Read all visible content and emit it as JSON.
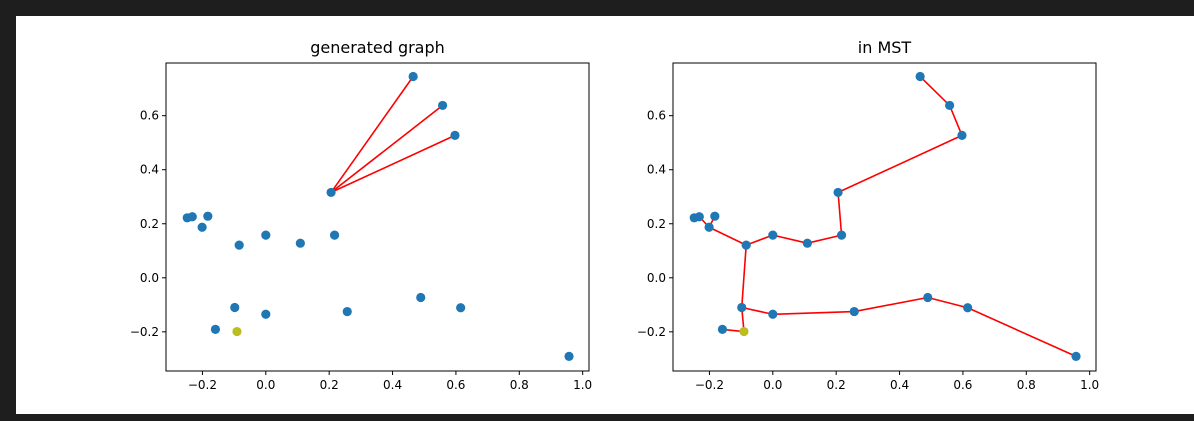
{
  "chart_data": [
    {
      "type": "scatter",
      "title": "generated graph",
      "xlabel": "",
      "ylabel": "",
      "xlim": [
        -0.315,
        1.02
      ],
      "ylim": [
        -0.345,
        0.795
      ],
      "xticks": [
        -0.2,
        0.0,
        0.2,
        0.4,
        0.6,
        0.8,
        1.0
      ],
      "xtick_labels": [
        "−0.2",
        "0.0",
        "0.2",
        "0.4",
        "0.6",
        "0.8",
        "1.0"
      ],
      "yticks": [
        -0.2,
        0.0,
        0.2,
        0.4,
        0.6
      ],
      "ytick_labels": [
        "−0.2",
        "0.0",
        "0.2",
        "0.4",
        "0.6"
      ],
      "grid": false,
      "points": [
        [
          0.465,
          0.745
        ],
        [
          0.558,
          0.638
        ],
        [
          0.597,
          0.527
        ],
        [
          0.206,
          0.316
        ],
        [
          -0.248,
          0.222
        ],
        [
          -0.232,
          0.226
        ],
        [
          -0.183,
          0.228
        ],
        [
          -0.201,
          0.187
        ],
        [
          -0.084,
          0.121
        ],
        [
          0.0,
          0.158
        ],
        [
          0.109,
          0.128
        ],
        [
          0.217,
          0.158
        ],
        [
          -0.098,
          -0.11
        ],
        [
          0.489,
          -0.073
        ],
        [
          0.615,
          -0.111
        ],
        [
          0.257,
          -0.125
        ],
        [
          0.0,
          -0.135
        ],
        [
          -0.159,
          -0.191
        ],
        [
          0.957,
          -0.291
        ]
      ],
      "highlight_point": [
        -0.091,
        -0.199
      ],
      "edges": [
        [
          [
            0.206,
            0.316
          ],
          [
            0.465,
            0.745
          ]
        ],
        [
          [
            0.206,
            0.316
          ],
          [
            0.558,
            0.638
          ]
        ],
        [
          [
            0.206,
            0.316
          ],
          [
            0.597,
            0.527
          ]
        ]
      ],
      "colors": {
        "points": "#1f77b4",
        "highlight": "#bcbd22",
        "edges": "#ff0000"
      }
    },
    {
      "type": "scatter",
      "title": "in MST",
      "xlabel": "",
      "ylabel": "",
      "xlim": [
        -0.315,
        1.02
      ],
      "ylim": [
        -0.345,
        0.795
      ],
      "xticks": [
        -0.2,
        0.0,
        0.2,
        0.4,
        0.6,
        0.8,
        1.0
      ],
      "xtick_labels": [
        "−0.2",
        "0.0",
        "0.2",
        "0.4",
        "0.6",
        "0.8",
        "1.0"
      ],
      "yticks": [
        -0.2,
        0.0,
        0.2,
        0.4,
        0.6
      ],
      "ytick_labels": [
        "−0.2",
        "0.0",
        "0.2",
        "0.4",
        "0.6"
      ],
      "grid": false,
      "points": [
        [
          0.465,
          0.745
        ],
        [
          0.558,
          0.638
        ],
        [
          0.597,
          0.527
        ],
        [
          0.206,
          0.316
        ],
        [
          -0.248,
          0.222
        ],
        [
          -0.232,
          0.226
        ],
        [
          -0.183,
          0.228
        ],
        [
          -0.201,
          0.187
        ],
        [
          -0.084,
          0.121
        ],
        [
          0.0,
          0.158
        ],
        [
          0.109,
          0.128
        ],
        [
          0.217,
          0.158
        ],
        [
          -0.098,
          -0.11
        ],
        [
          0.489,
          -0.073
        ],
        [
          0.615,
          -0.111
        ],
        [
          0.257,
          -0.125
        ],
        [
          0.0,
          -0.135
        ],
        [
          -0.159,
          -0.191
        ],
        [
          0.957,
          -0.291
        ]
      ],
      "highlight_point": [
        -0.091,
        -0.199
      ],
      "edges": [
        [
          [
            0.465,
            0.745
          ],
          [
            0.558,
            0.638
          ]
        ],
        [
          [
            0.558,
            0.638
          ],
          [
            0.597,
            0.527
          ]
        ],
        [
          [
            0.597,
            0.527
          ],
          [
            0.206,
            0.316
          ]
        ],
        [
          [
            0.206,
            0.316
          ],
          [
            0.217,
            0.158
          ]
        ],
        [
          [
            0.217,
            0.158
          ],
          [
            0.109,
            0.128
          ]
        ],
        [
          [
            0.109,
            0.128
          ],
          [
            0.0,
            0.158
          ]
        ],
        [
          [
            0.0,
            0.158
          ],
          [
            -0.084,
            0.121
          ]
        ],
        [
          [
            -0.084,
            0.121
          ],
          [
            -0.201,
            0.187
          ]
        ],
        [
          [
            -0.201,
            0.187
          ],
          [
            -0.183,
            0.228
          ]
        ],
        [
          [
            -0.201,
            0.187
          ],
          [
            -0.232,
            0.226
          ]
        ],
        [
          [
            -0.232,
            0.226
          ],
          [
            -0.248,
            0.222
          ]
        ],
        [
          [
            -0.084,
            0.121
          ],
          [
            -0.098,
            -0.11
          ]
        ],
        [
          [
            -0.098,
            -0.11
          ],
          [
            -0.091,
            -0.199
          ]
        ],
        [
          [
            -0.091,
            -0.199
          ],
          [
            -0.159,
            -0.191
          ]
        ],
        [
          [
            -0.098,
            -0.11
          ],
          [
            0.0,
            -0.135
          ]
        ],
        [
          [
            0.0,
            -0.135
          ],
          [
            0.257,
            -0.125
          ]
        ],
        [
          [
            0.257,
            -0.125
          ],
          [
            0.489,
            -0.073
          ]
        ],
        [
          [
            0.489,
            -0.073
          ],
          [
            0.615,
            -0.111
          ]
        ],
        [
          [
            0.615,
            -0.111
          ],
          [
            0.957,
            -0.291
          ]
        ]
      ],
      "colors": {
        "points": "#1f77b4",
        "highlight": "#bcbd22",
        "edges": "#ff0000"
      }
    }
  ]
}
